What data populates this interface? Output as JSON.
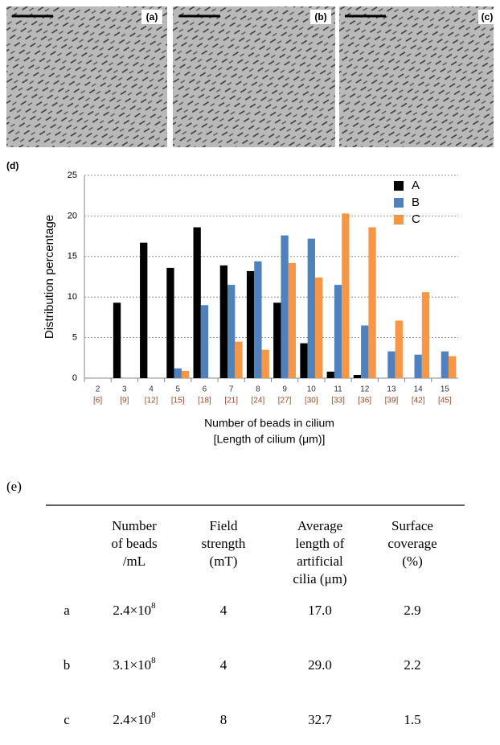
{
  "micrographs": [
    "(a)",
    "(b)",
    "(c)"
  ],
  "chart_label": "(d)",
  "chart_data": {
    "type": "bar",
    "y_label": "Distribution percentage",
    "x_label": [
      "Number of beads in cilium",
      "[Length of cilium (μm)]"
    ],
    "categories": [
      [
        "2",
        "[6]"
      ],
      [
        "3",
        "[9]"
      ],
      [
        "4",
        "[12]"
      ],
      [
        "5",
        "[15]"
      ],
      [
        "6",
        "[18]"
      ],
      [
        "7",
        "[21]"
      ],
      [
        "8",
        "[24]"
      ],
      [
        "9",
        "[27]"
      ],
      [
        "10",
        "[30]"
      ],
      [
        "11",
        "[33]"
      ],
      [
        "12",
        "[36]"
      ],
      [
        "13",
        "[39]"
      ],
      [
        "14",
        "[42]"
      ],
      [
        "15",
        "[45]"
      ]
    ],
    "series": [
      {
        "name": "A",
        "color": "#000000",
        "values": [
          0,
          9.3,
          16.7,
          13.6,
          18.6,
          13.9,
          13.2,
          9.3,
          4.3,
          0.8,
          0.4,
          0,
          0,
          0
        ]
      },
      {
        "name": "B",
        "color": "#4f81bd",
        "values": [
          0,
          0,
          0,
          1.2,
          9.0,
          11.5,
          14.4,
          17.6,
          17.2,
          11.5,
          6.5,
          3.3,
          2.9,
          3.3
        ]
      },
      {
        "name": "C",
        "color": "#f79646",
        "values": [
          0,
          0,
          0,
          0.9,
          0,
          4.5,
          3.5,
          14.2,
          12.4,
          20.3,
          18.6,
          7.1,
          10.6,
          2.7
        ]
      }
    ],
    "ylim": [
      0,
      25
    ],
    "yticks": [
      0,
      5,
      10,
      15,
      20,
      25
    ],
    "grid": true,
    "legend": "top-right"
  },
  "table_label": "(e)",
  "table": {
    "header": [
      [
        "Number",
        "of beads",
        "/mL"
      ],
      [
        "Field",
        "strength",
        "(mT)"
      ],
      [
        "Average",
        "length of",
        "artificial",
        "cilia (μm)"
      ],
      [
        "Surface",
        "coverage",
        "(%)"
      ]
    ],
    "rows": [
      [
        "a",
        {
          "base": "2.4×10",
          "exp": "8"
        },
        "4",
        "17.0",
        "2.9"
      ],
      [
        "b",
        {
          "base": "3.1×10",
          "exp": "8"
        },
        "4",
        "29.0",
        "2.2"
      ],
      [
        "c",
        {
          "base": "2.4×10",
          "exp": "8"
        },
        "8",
        "32.7",
        "1.5"
      ]
    ]
  }
}
